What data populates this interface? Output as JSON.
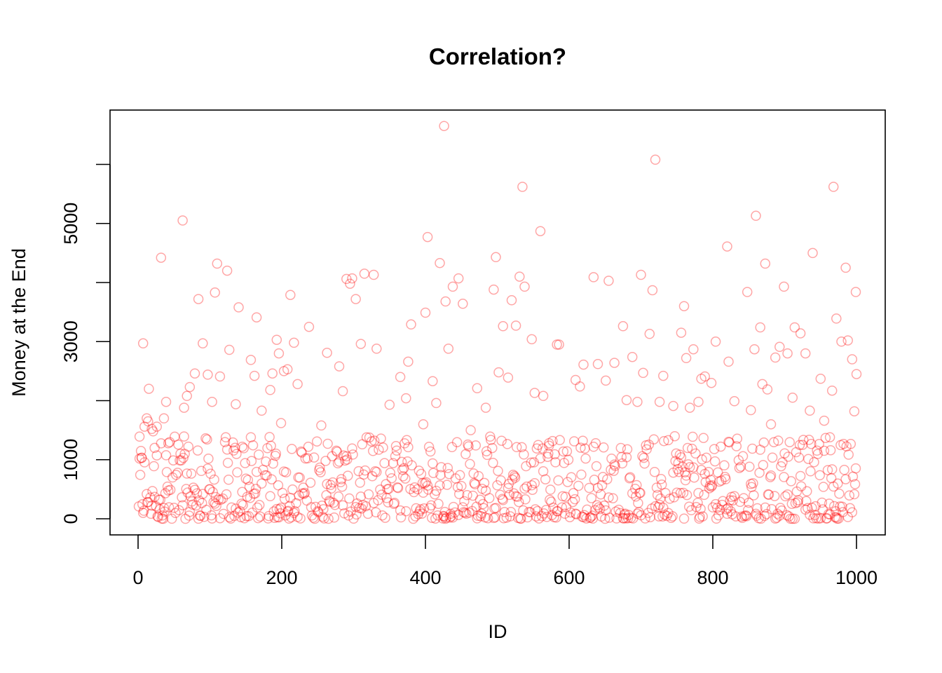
{
  "chart_data": {
    "type": "scatter",
    "title": "Correlation?",
    "xlabel": "ID",
    "ylabel": "Money at the End",
    "xlim": [
      0,
      1000
    ],
    "ylim": [
      0,
      6700
    ],
    "x_ticks": [
      0,
      200,
      400,
      600,
      800,
      1000
    ],
    "y_ticks": [
      0,
      1000,
      3000,
      5000
    ],
    "grid": false,
    "point_style": "open-circle",
    "colors": {
      "points": "#ff0000"
    },
    "series": [
      {
        "points": [
          [
            2,
            1020
          ],
          [
            5,
            1030
          ],
          [
            7,
            2970
          ],
          [
            9,
            1560
          ],
          [
            12,
            1700
          ],
          [
            14,
            1650
          ],
          [
            15,
            2200
          ],
          [
            19,
            1520
          ],
          [
            21,
            1480
          ],
          [
            23,
            1200
          ],
          [
            26,
            1560
          ],
          [
            32,
            4420
          ],
          [
            36,
            1700
          ],
          [
            39,
            1980
          ],
          [
            42,
            1280
          ],
          [
            62,
            5050
          ],
          [
            64,
            1880
          ],
          [
            68,
            2080
          ],
          [
            72,
            2230
          ],
          [
            79,
            2460
          ],
          [
            84,
            3720
          ],
          [
            90,
            2970
          ],
          [
            97,
            2440
          ],
          [
            103,
            1980
          ],
          [
            107,
            3830
          ],
          [
            110,
            4320
          ],
          [
            114,
            2410
          ],
          [
            124,
            4200
          ],
          [
            127,
            2860
          ],
          [
            136,
            1940
          ],
          [
            140,
            3580
          ],
          [
            145,
            1220
          ],
          [
            157,
            2690
          ],
          [
            162,
            2420
          ],
          [
            165,
            3410
          ],
          [
            172,
            1830
          ],
          [
            184,
            2180
          ],
          [
            187,
            2460
          ],
          [
            193,
            3030
          ],
          [
            196,
            2800
          ],
          [
            199,
            1620
          ],
          [
            203,
            2500
          ],
          [
            208,
            2530
          ],
          [
            212,
            3790
          ],
          [
            217,
            2980
          ],
          [
            222,
            2280
          ],
          [
            238,
            3250
          ],
          [
            255,
            1580
          ],
          [
            263,
            2810
          ],
          [
            280,
            2580
          ],
          [
            285,
            2160
          ],
          [
            290,
            4060
          ],
          [
            295,
            3980
          ],
          [
            298,
            4070
          ],
          [
            303,
            3720
          ],
          [
            310,
            2960
          ],
          [
            315,
            4150
          ],
          [
            328,
            4130
          ],
          [
            332,
            2880
          ],
          [
            350,
            1930
          ],
          [
            365,
            2400
          ],
          [
            373,
            2040
          ],
          [
            376,
            2660
          ],
          [
            380,
            3290
          ],
          [
            397,
            1600
          ],
          [
            400,
            3490
          ],
          [
            403,
            4770
          ],
          [
            410,
            2330
          ],
          [
            415,
            1960
          ],
          [
            420,
            4330
          ],
          [
            426,
            6650
          ],
          [
            428,
            3680
          ],
          [
            432,
            2880
          ],
          [
            438,
            3930
          ],
          [
            446,
            4070
          ],
          [
            452,
            3640
          ],
          [
            463,
            1500
          ],
          [
            472,
            2210
          ],
          [
            484,
            1880
          ],
          [
            495,
            3880
          ],
          [
            498,
            4430
          ],
          [
            502,
            2480
          ],
          [
            508,
            3260
          ],
          [
            515,
            2390
          ],
          [
            520,
            3700
          ],
          [
            526,
            3270
          ],
          [
            531,
            4100
          ],
          [
            535,
            5620
          ],
          [
            538,
            3930
          ],
          [
            548,
            3040
          ],
          [
            552,
            2130
          ],
          [
            560,
            4870
          ],
          [
            564,
            2080
          ],
          [
            572,
            1280
          ],
          [
            583,
            2950
          ],
          [
            586,
            2950
          ],
          [
            609,
            2350
          ],
          [
            615,
            2240
          ],
          [
            620,
            2610
          ],
          [
            634,
            4090
          ],
          [
            640,
            2620
          ],
          [
            651,
            2340
          ],
          [
            655,
            4030
          ],
          [
            663,
            2640
          ],
          [
            675,
            3260
          ],
          [
            680,
            2010
          ],
          [
            688,
            2740
          ],
          [
            695,
            1980
          ],
          [
            700,
            4130
          ],
          [
            703,
            2470
          ],
          [
            712,
            3130
          ],
          [
            716,
            3870
          ],
          [
            720,
            6080
          ],
          [
            726,
            1980
          ],
          [
            731,
            2420
          ],
          [
            738,
            1330
          ],
          [
            745,
            1910
          ],
          [
            756,
            3150
          ],
          [
            760,
            3600
          ],
          [
            763,
            2720
          ],
          [
            768,
            1880
          ],
          [
            773,
            2870
          ],
          [
            780,
            1980
          ],
          [
            784,
            2370
          ],
          [
            789,
            2410
          ],
          [
            798,
            2300
          ],
          [
            804,
            3000
          ],
          [
            820,
            4610
          ],
          [
            822,
            2660
          ],
          [
            830,
            1990
          ],
          [
            848,
            3840
          ],
          [
            853,
            1840
          ],
          [
            858,
            2870
          ],
          [
            860,
            5130
          ],
          [
            866,
            3240
          ],
          [
            869,
            2280
          ],
          [
            873,
            4320
          ],
          [
            876,
            2190
          ],
          [
            881,
            1600
          ],
          [
            887,
            2730
          ],
          [
            893,
            2910
          ],
          [
            899,
            3930
          ],
          [
            904,
            2800
          ],
          [
            911,
            2050
          ],
          [
            914,
            3240
          ],
          [
            922,
            3140
          ],
          [
            929,
            2800
          ],
          [
            935,
            1830
          ],
          [
            939,
            4500
          ],
          [
            950,
            2370
          ],
          [
            955,
            1660
          ],
          [
            963,
            1380
          ],
          [
            966,
            2170
          ],
          [
            968,
            5620
          ],
          [
            972,
            3390
          ],
          [
            979,
            3000
          ],
          [
            985,
            4250
          ],
          [
            988,
            3020
          ],
          [
            994,
            2700
          ],
          [
            997,
            1820
          ],
          [
            999,
            3840
          ],
          [
            1000,
            2450
          ]
        ]
      }
    ]
  }
}
